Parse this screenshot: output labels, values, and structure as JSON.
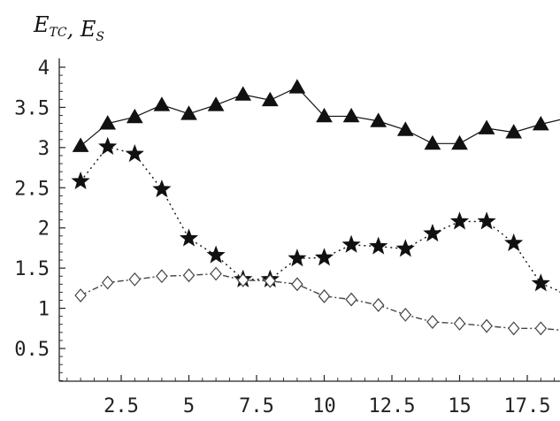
{
  "chart_data": {
    "type": "line",
    "title": {
      "parts": [
        {
          "main": "E",
          "sub": "TC"
        },
        {
          "main": ", E",
          "sub": "S"
        }
      ]
    },
    "xlabel": "",
    "ylabel": "",
    "xlim": [
      0.3,
      19.1
    ],
    "ylim": [
      -0.45,
      4.0
    ],
    "x_ticks": [
      2.5,
      5,
      7.5,
      10,
      12.5,
      15,
      17.5
    ],
    "x_tick_labels": [
      "2.5",
      "5",
      "7.5",
      "10",
      "12.5",
      "15",
      "17.5"
    ],
    "y_ticks": [
      0.5,
      1,
      1.5,
      2,
      2.5,
      3,
      3.5,
      4
    ],
    "y_tick_labels": [
      "0.5",
      "1",
      "1.5",
      "2",
      "2.5",
      "3",
      "3.5",
      "4"
    ],
    "grid": false,
    "series": [
      {
        "marker": "triangle",
        "line_style": "solid",
        "color": "#111111",
        "x": [
          1,
          2,
          3,
          4,
          5,
          6,
          7,
          8,
          9,
          10,
          11,
          12,
          13,
          14,
          15,
          16,
          17,
          18,
          19
        ],
        "y": [
          3.02,
          3.3,
          3.38,
          3.53,
          3.42,
          3.53,
          3.66,
          3.59,
          3.75,
          3.39,
          3.39,
          3.33,
          3.22,
          3.05,
          3.05,
          3.24,
          3.19,
          3.29,
          3.37
        ]
      },
      {
        "marker": "star",
        "line_style": "dotted",
        "color": "#111111",
        "x": [
          1,
          2,
          3,
          4,
          5,
          6,
          7,
          8,
          9,
          10,
          11,
          12,
          13,
          14,
          15,
          16,
          17,
          18,
          19
        ],
        "y": [
          2.58,
          3.01,
          2.92,
          2.48,
          1.87,
          1.66,
          1.36,
          1.36,
          1.62,
          1.63,
          1.79,
          1.77,
          1.74,
          1.93,
          2.08,
          2.08,
          1.81,
          1.31,
          1.17
        ]
      },
      {
        "marker": "diamond",
        "line_style": "dashdot",
        "color": "#444444",
        "x": [
          1,
          2,
          3,
          4,
          5,
          6,
          7,
          8,
          9,
          10,
          11,
          12,
          13,
          14,
          15,
          16,
          17,
          18,
          19
        ],
        "y": [
          1.16,
          1.32,
          1.36,
          1.4,
          1.41,
          1.43,
          1.35,
          1.34,
          1.3,
          1.15,
          1.11,
          1.04,
          0.92,
          0.83,
          0.81,
          0.78,
          0.75,
          0.75,
          0.72
        ]
      }
    ]
  }
}
